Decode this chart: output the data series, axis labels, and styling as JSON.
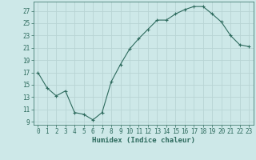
{
  "x": [
    0,
    1,
    2,
    3,
    4,
    5,
    6,
    7,
    8,
    9,
    10,
    11,
    12,
    13,
    14,
    15,
    16,
    17,
    18,
    19,
    20,
    21,
    22,
    23
  ],
  "y": [
    17,
    14.5,
    13.2,
    14.0,
    10.5,
    10.2,
    9.3,
    10.5,
    15.5,
    18.3,
    20.8,
    22.5,
    24.0,
    25.5,
    25.5,
    26.5,
    27.2,
    27.7,
    27.7,
    26.5,
    25.2,
    23.0,
    21.5,
    21.2
  ],
  "line_color": "#2e6b5e",
  "marker": "+",
  "marker_size": 3,
  "bg_color": "#cde8e8",
  "grid_color": "#b8d4d4",
  "xlabel": "Humidex (Indice chaleur)",
  "xlim": [
    -0.5,
    23.5
  ],
  "ylim": [
    8.5,
    28.5
  ],
  "yticks": [
    9,
    11,
    13,
    15,
    17,
    19,
    21,
    23,
    25,
    27
  ],
  "xticks": [
    0,
    1,
    2,
    3,
    4,
    5,
    6,
    7,
    8,
    9,
    10,
    11,
    12,
    13,
    14,
    15,
    16,
    17,
    18,
    19,
    20,
    21,
    22,
    23
  ],
  "tick_label_fontsize": 5.5,
  "xlabel_fontsize": 6.5
}
